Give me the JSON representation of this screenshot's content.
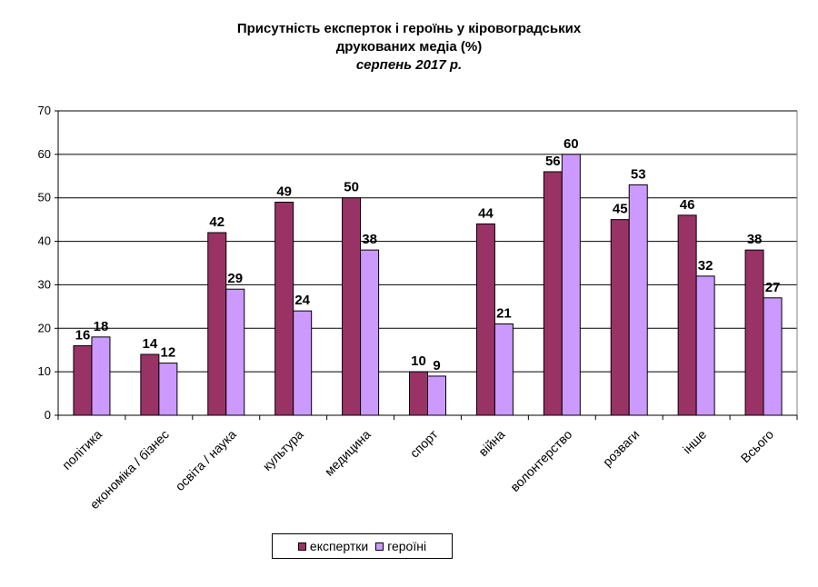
{
  "chart_data": {
    "type": "bar",
    "title_line1": "Присутність експерток і героїнь у кіровоградських",
    "title_line2": "друкованих медіа (%)",
    "subtitle": "серпень 2017 р.",
    "categories": [
      "політика",
      "економіка / бізнес",
      "освіта / наука",
      "культура",
      "медицина",
      "спорт",
      "війна",
      "волонтерство",
      "розваги",
      "інше",
      "Всього"
    ],
    "series": [
      {
        "name": "експертки",
        "color": "#993366",
        "values": [
          16,
          14,
          42,
          49,
          50,
          10,
          44,
          56,
          45,
          46,
          38
        ]
      },
      {
        "name": "героїні",
        "color": "#CC99FF",
        "values": [
          18,
          12,
          29,
          24,
          38,
          9,
          21,
          60,
          53,
          32,
          27
        ]
      }
    ],
    "ylim": [
      0,
      70
    ],
    "yticks": [
      0,
      10,
      20,
      30,
      40,
      50,
      60,
      70
    ],
    "ytick_labels": [
      "0",
      "10",
      "20",
      "30",
      "40",
      "50",
      "60",
      "70"
    ],
    "grid": true,
    "legend_position": "bottom",
    "data_labels": true
  }
}
